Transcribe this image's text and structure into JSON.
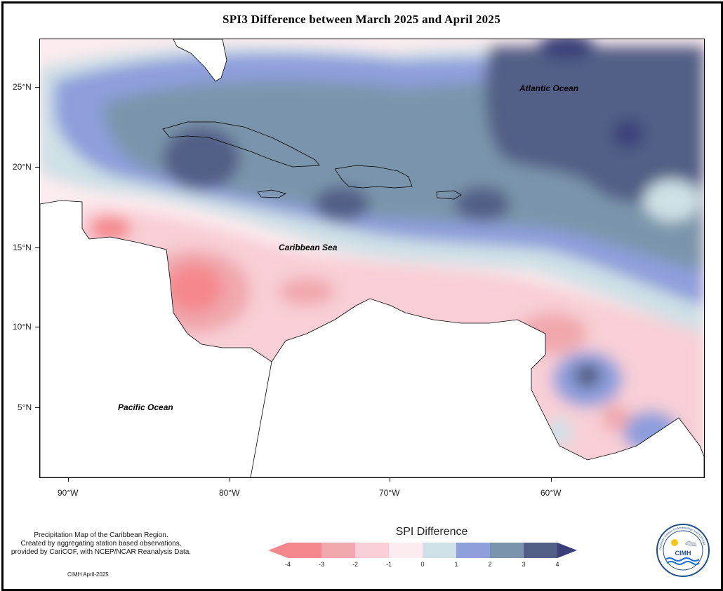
{
  "title": "SPI3 Difference between March 2025 and April 2025",
  "y_axis": [
    {
      "label": "25°N"
    },
    {
      "label": "20°N"
    },
    {
      "label": "15°N"
    },
    {
      "label": "10°N"
    },
    {
      "label": "5°N"
    }
  ],
  "x_axis": [
    {
      "label": "90°W"
    },
    {
      "label": "80°W"
    },
    {
      "label": "70°W"
    },
    {
      "label": "60°W"
    }
  ],
  "ocean_labels": {
    "atlantic": "Atlantic Ocean",
    "caribbean": "Caribbean Sea",
    "pacific": "Pacific Ocean"
  },
  "legend": {
    "title": "SPI Difference",
    "ticks": [
      "-4",
      "-3",
      "-2",
      "-1",
      "0",
      "1",
      "2",
      "3",
      "4"
    ],
    "colors": [
      "#f4888d",
      "#f0a8ae",
      "#f8cfd6",
      "#fcecef",
      "#cfe0e6",
      "#8e9fdb",
      "#7a95ab",
      "#525e86"
    ],
    "under_color": "#f4888d",
    "over_color": "#3b3f78"
  },
  "footnote": {
    "line1": "Precipitation Map of the Caribbean Region.",
    "line2": "Created by aggregating station based observations,",
    "line3": "provided by CariCOF, with NCEP/NCAR Reanalysis Data.",
    "credit": "CIMH April-2025"
  },
  "logo": {
    "text": "CIMH",
    "ring_text": "Caribbean Institute for Meteorology and Hydrology"
  }
}
